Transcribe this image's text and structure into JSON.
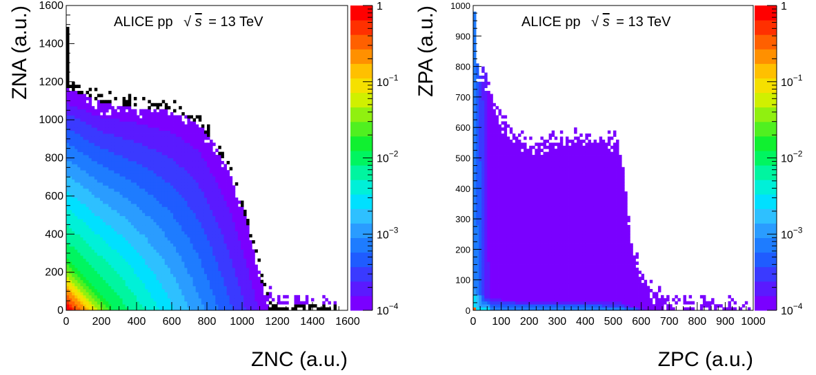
{
  "chart_data": [
    {
      "type": "heatmap",
      "annotation": {
        "prefix": "ALICE pp",
        "sqrt": "√",
        "s": "s",
        "suffix": "= 13 TeV"
      },
      "xlabel": "ZNC (a.u.)",
      "ylabel": "ZNA (a.u.)",
      "xlim": [
        0,
        1600
      ],
      "ylim": [
        0,
        1600
      ],
      "xticks": [
        "0",
        "200",
        "400",
        "600",
        "800",
        "1000",
        "1200",
        "1400",
        "1600"
      ],
      "yticks": [
        "0",
        "200",
        "400",
        "600",
        "800",
        "1000",
        "1200",
        "1400",
        "1600"
      ],
      "z_scale": "log",
      "zlim": [
        0.0001,
        1
      ],
      "zticks": [
        {
          "value": 1,
          "base": "1",
          "exp": ""
        },
        {
          "value": 0.1,
          "base": "10",
          "exp": "−1"
        },
        {
          "value": 0.01,
          "base": "10",
          "exp": "−2"
        },
        {
          "value": 0.001,
          "base": "10",
          "exp": "−3"
        },
        {
          "value": 0.0001,
          "base": "10",
          "exp": "−4"
        }
      ],
      "max_extent_profile": [
        [
          0,
          1170
        ],
        [
          200,
          1090
        ],
        [
          400,
          1070
        ],
        [
          600,
          1050
        ],
        [
          750,
          990
        ],
        [
          850,
          860
        ],
        [
          950,
          680
        ],
        [
          1030,
          460
        ],
        [
          1080,
          260
        ],
        [
          1130,
          90
        ],
        [
          1200,
          35
        ],
        [
          1540,
          25
        ]
      ],
      "spike_at_zero": 1480
    },
    {
      "type": "heatmap",
      "annotation": {
        "prefix": "ALICE pp",
        "sqrt": "√",
        "s": "s",
        "suffix": "= 13 TeV"
      },
      "xlabel": "ZPC (a.u.)",
      "ylabel": "ZPA (a.u.)",
      "xlim": [
        0,
        1000
      ],
      "ylim": [
        0,
        1000
      ],
      "xticks": [
        "0",
        "100",
        "200",
        "300",
        "400",
        "500",
        "600",
        "700",
        "800",
        "900",
        "1000"
      ],
      "yticks": [
        "0",
        "100",
        "200",
        "300",
        "400",
        "500",
        "600",
        "700",
        "800",
        "900",
        "1000"
      ],
      "z_scale": "log",
      "zlim": [
        0.0001,
        1
      ],
      "zticks": [
        {
          "value": 1,
          "base": "1",
          "exp": ""
        },
        {
          "value": 0.1,
          "base": "10",
          "exp": "−1"
        },
        {
          "value": 0.01,
          "base": "10",
          "exp": "−2"
        },
        {
          "value": 0.001,
          "base": "10",
          "exp": "−3"
        },
        {
          "value": 0.0001,
          "base": "10",
          "exp": "−4"
        }
      ],
      "max_extent_profile": [
        [
          0,
          800
        ],
        [
          40,
          760
        ],
        [
          100,
          620
        ],
        [
          160,
          570
        ],
        [
          220,
          540
        ],
        [
          300,
          560
        ],
        [
          400,
          570
        ],
        [
          520,
          550
        ],
        [
          540,
          420
        ],
        [
          560,
          260
        ],
        [
          600,
          110
        ],
        [
          660,
          40
        ],
        [
          700,
          20
        ],
        [
          800,
          15
        ],
        [
          990,
          10
        ]
      ],
      "spike_at_zero": 980
    }
  ],
  "colors": {
    "palette": [
      "#7a00ff",
      "#5a1aff",
      "#3a3aff",
      "#1f5cff",
      "#1e7cff",
      "#2a9cff",
      "#2ec0ff",
      "#00e0ff",
      "#00f0d8",
      "#00f5a0",
      "#00f560",
      "#10f030",
      "#50f020",
      "#90f010",
      "#d0f000",
      "#f5e000",
      "#ffc000",
      "#ff9000",
      "#ff6000",
      "#ff3000",
      "#ff0000"
    ],
    "background": "#ffffff",
    "frame": "#000000"
  }
}
